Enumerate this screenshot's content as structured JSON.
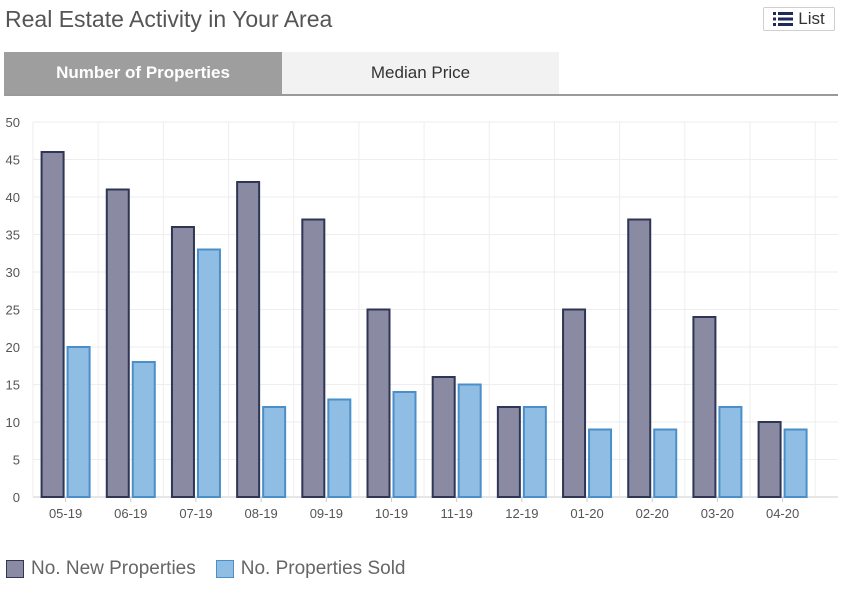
{
  "header": {
    "title": "Real Estate Activity in Your Area",
    "list_label": "List",
    "list_icon": "list-icon"
  },
  "tabs": [
    {
      "label": "Number of Properties",
      "active": true
    },
    {
      "label": "Median Price",
      "active": false
    }
  ],
  "chart_data": {
    "type": "bar",
    "categories": [
      "05-19",
      "06-19",
      "07-19",
      "08-19",
      "09-19",
      "10-19",
      "11-19",
      "12-19",
      "01-20",
      "02-20",
      "03-20",
      "04-20"
    ],
    "series": [
      {
        "name": "No. New Properties",
        "values": [
          46,
          41,
          36,
          42,
          37,
          25,
          16,
          12,
          25,
          37,
          24,
          10
        ],
        "color": "#8a8aa3",
        "stroke": "#2e3555"
      },
      {
        "name": "No. Properties Sold",
        "values": [
          20,
          18,
          33,
          12,
          13,
          14,
          15,
          12,
          9,
          9,
          12,
          9
        ],
        "color": "#90bde3",
        "stroke": "#4a8fc8"
      }
    ],
    "ylim": [
      0,
      50
    ],
    "yticks": [
      0,
      5,
      10,
      15,
      20,
      25,
      30,
      35,
      40,
      45,
      50
    ],
    "grid": true,
    "legend": "bottom-left"
  }
}
